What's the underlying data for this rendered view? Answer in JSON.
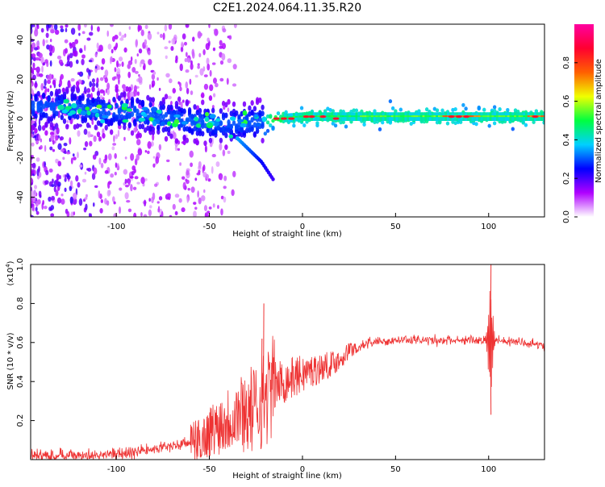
{
  "page_title": "C2E1.2024.064.11.35.R20",
  "chart_data": [
    {
      "type": "heatmap",
      "xlabel": "Height of straight line (km)",
      "ylabel": "Frequency (Hz)",
      "xlim": [
        -146,
        130
      ],
      "ylim": [
        -50,
        48
      ],
      "x_ticks": [
        -100,
        -50,
        0,
        50,
        100
      ],
      "y_ticks": [
        -40,
        -20,
        0,
        20,
        40
      ],
      "colorbar": {
        "label": "Normalized spectral amplitude",
        "range": [
          0,
          1
        ],
        "ticks": [
          0.0,
          0.2,
          0.4,
          0.6,
          0.8
        ],
        "tick_labels": [
          "0.0",
          "0.2",
          "0.4",
          "0.6",
          "0.8"
        ],
        "colors": [
          "#ffffff",
          "#b000ff",
          "#0000ff",
          "#00d0ff",
          "#00ff40",
          "#f0ff00",
          "#ff6000",
          "#ff0030",
          "#ff00a0"
        ]
      },
      "ridge_center_hz": [
        {
          "x": -130,
          "y": 6
        },
        {
          "x": -110,
          "y": 4
        },
        {
          "x": -90,
          "y": 3
        },
        {
          "x": -70,
          "y": 0
        },
        {
          "x": -55,
          "y": -2
        },
        {
          "x": -40,
          "y": -3
        },
        {
          "x": -25,
          "y": -2
        },
        {
          "x": -15,
          "y": 0
        },
        {
          "x": 0,
          "y": 1
        },
        {
          "x": 50,
          "y": 1
        },
        {
          "x": 100,
          "y": 1
        },
        {
          "x": 130,
          "y": 1
        }
      ],
      "descending_branch": [
        {
          "x": -35,
          "y": -10
        },
        {
          "x": -22,
          "y": -22
        },
        {
          "x": -15,
          "y": -32
        }
      ]
    },
    {
      "type": "line",
      "xlabel": "Height of straight line (km)",
      "ylabel": "SNR (10 * v/v)",
      "y_multiplier": "(x10",
      "y_multiplier_exponent": "4",
      "y_multiplier_close": ")",
      "xlim": [
        -146,
        130
      ],
      "ylim": [
        0,
        1.0
      ],
      "x_ticks": [
        -100,
        -50,
        0,
        50,
        100
      ],
      "y_ticks": [
        0.2,
        0.4,
        0.6,
        0.8,
        1.0
      ],
      "y_tick_labels": [
        "0.2",
        "0.4",
        "0.6",
        "0.8",
        "1.0"
      ],
      "series": [
        {
          "color": "#ee3333",
          "envelope": [
            {
              "x": -146,
              "y": 0.02
            },
            {
              "x": -110,
              "y": 0.02
            },
            {
              "x": -90,
              "y": 0.04
            },
            {
              "x": -70,
              "y": 0.07
            },
            {
              "x": -55,
              "y": 0.1
            },
            {
              "x": -45,
              "y": 0.18
            },
            {
              "x": -35,
              "y": 0.24
            },
            {
              "x": -25,
              "y": 0.26
            },
            {
              "x": -15,
              "y": 0.38
            },
            {
              "x": 0,
              "y": 0.44
            },
            {
              "x": 10,
              "y": 0.47
            },
            {
              "x": 20,
              "y": 0.51
            },
            {
              "x": 25,
              "y": 0.56
            },
            {
              "x": 35,
              "y": 0.6
            },
            {
              "x": 50,
              "y": 0.61
            },
            {
              "x": 80,
              "y": 0.61
            },
            {
              "x": 100,
              "y": 0.61
            },
            {
              "x": 130,
              "y": 0.59
            }
          ],
          "spikes": [
            {
              "x": -21,
              "y": 0.8
            },
            {
              "x": -22,
              "y": 0.62
            },
            {
              "x": 101,
              "y": 1.0
            },
            {
              "x": 101,
              "y": 0.23
            }
          ]
        }
      ]
    }
  ]
}
